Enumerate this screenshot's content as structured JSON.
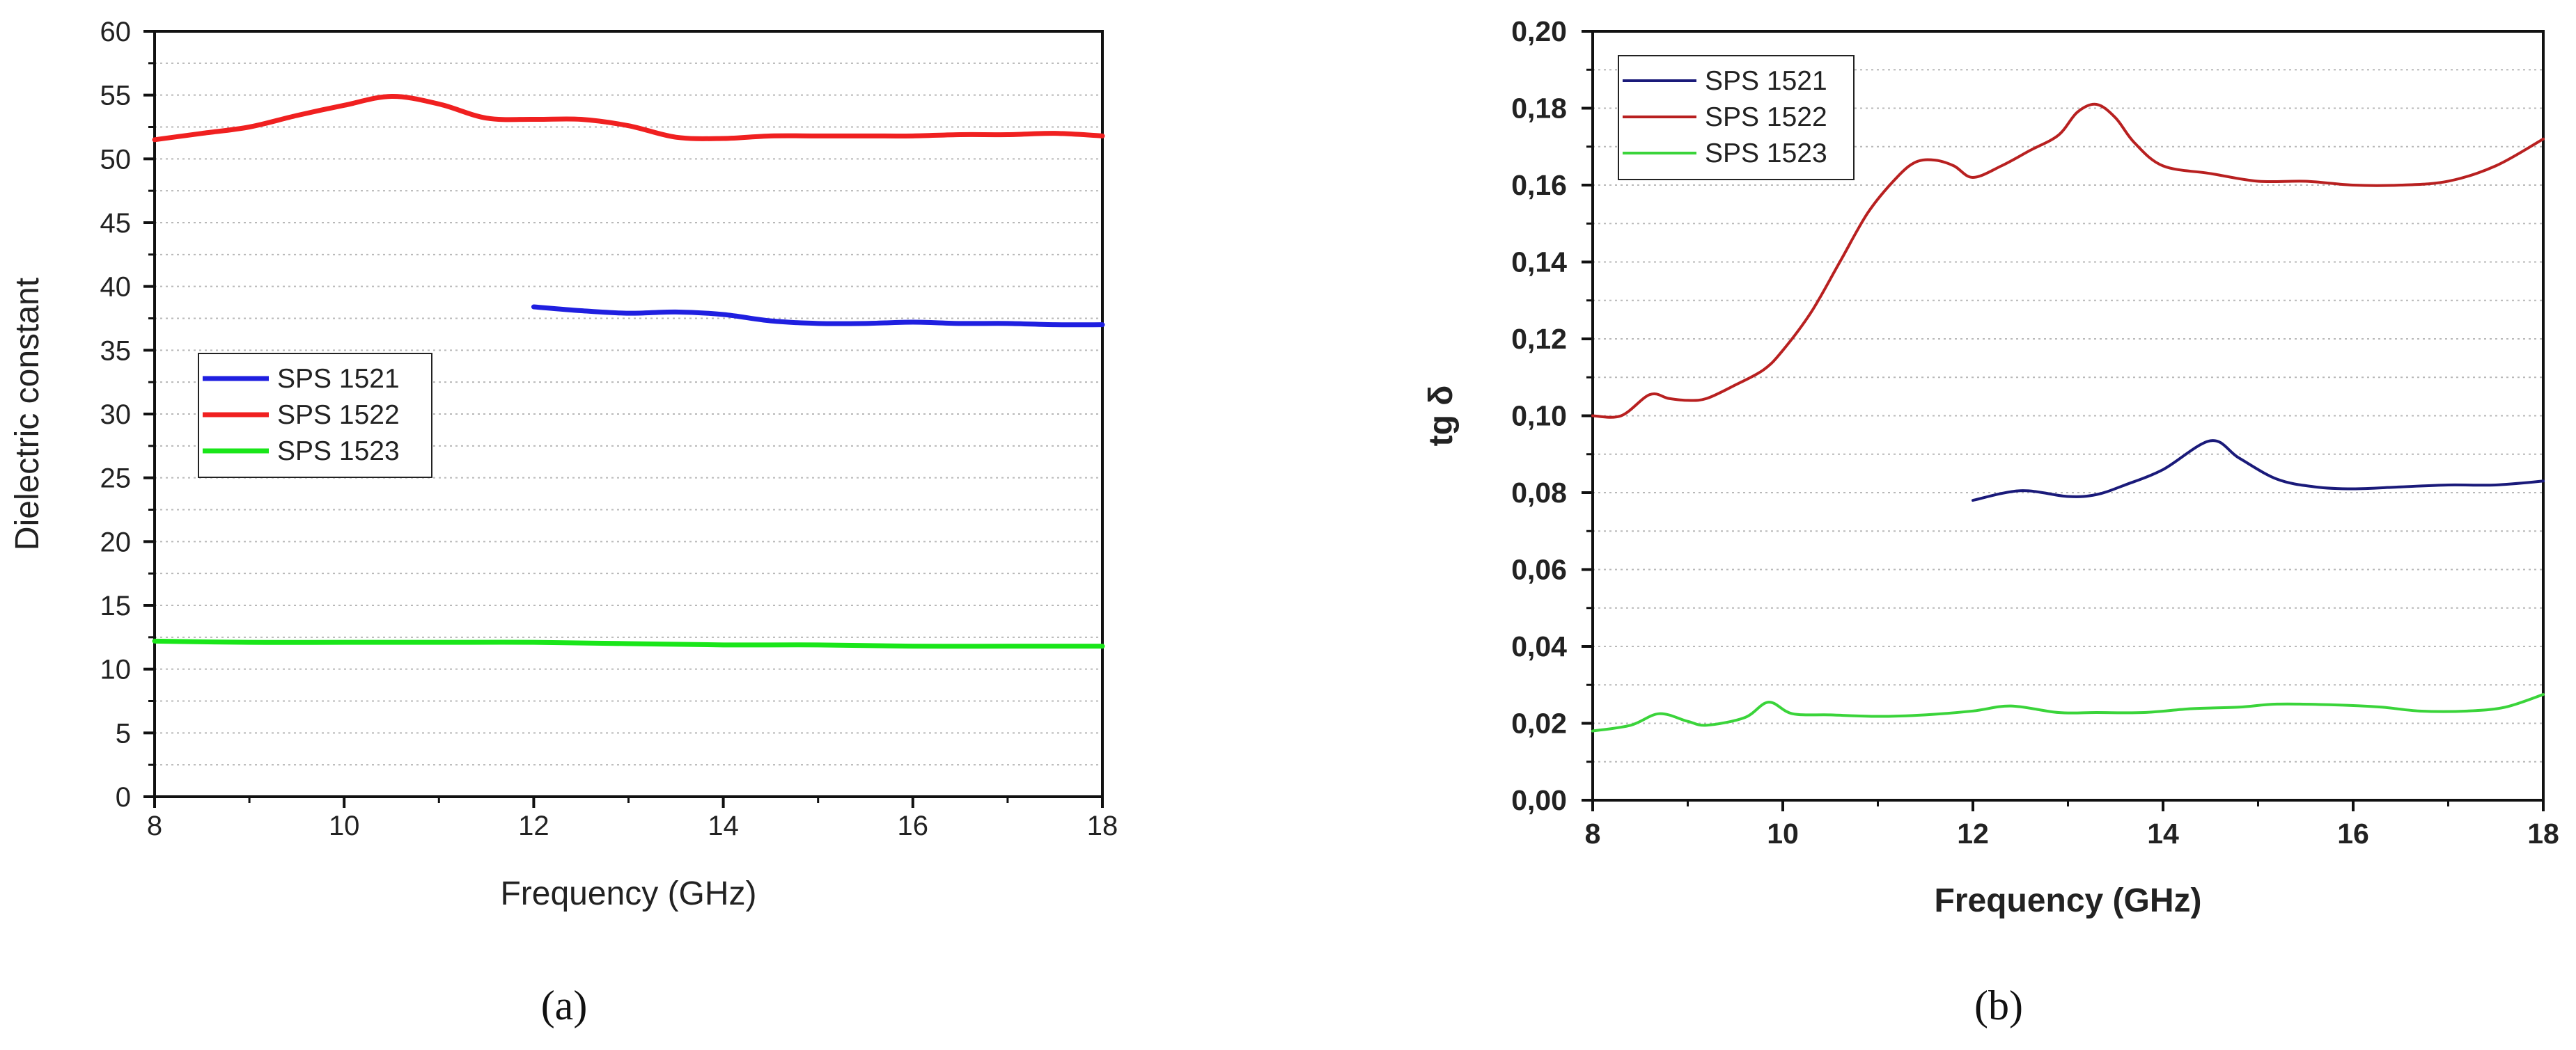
{
  "chart_data": [
    {
      "type": "line",
      "panel_label": "(a)",
      "xlabel": "Frequency (GHz)",
      "ylabel": "Dielectric constant",
      "xlim": [
        8,
        18
      ],
      "ylim": [
        0,
        60
      ],
      "x_ticks": [
        "8",
        "10",
        "12",
        "14",
        "16",
        "18"
      ],
      "y_ticks": [
        "0",
        "5",
        "10",
        "15",
        "20",
        "25",
        "30",
        "35",
        "40",
        "45",
        "50",
        "55",
        "60"
      ],
      "grid": "horizontal dotted",
      "legend_position": "middle-left",
      "series": [
        {
          "name": "SPS 1521",
          "color": "#1f1fe0",
          "x": [
            12,
            12.5,
            13,
            13.5,
            14,
            14.5,
            15,
            15.5,
            16,
            16.5,
            17,
            17.5,
            18
          ],
          "y": [
            38.4,
            38.1,
            37.9,
            38.0,
            37.8,
            37.3,
            37.1,
            37.1,
            37.2,
            37.1,
            37.1,
            37.0,
            37.0
          ]
        },
        {
          "name": "SPS 1522",
          "color": "#f02020",
          "x": [
            8,
            8.5,
            9,
            9.5,
            10,
            10.5,
            11,
            11.5,
            12,
            12.5,
            13,
            13.5,
            14,
            14.5,
            15,
            15.5,
            16,
            16.5,
            17,
            17.5,
            18
          ],
          "y": [
            51.5,
            52.0,
            52.5,
            53.4,
            54.2,
            54.9,
            54.3,
            53.2,
            53.1,
            53.1,
            52.6,
            51.7,
            51.6,
            51.8,
            51.8,
            51.8,
            51.8,
            51.9,
            51.9,
            52.0,
            51.8
          ]
        },
        {
          "name": "SPS 1523",
          "color": "#19e619",
          "x": [
            8,
            9,
            10,
            11,
            12,
            13,
            14,
            15,
            16,
            17,
            18
          ],
          "y": [
            12.2,
            12.1,
            12.1,
            12.1,
            12.1,
            12.0,
            11.9,
            11.9,
            11.8,
            11.8,
            11.8
          ]
        }
      ]
    },
    {
      "type": "line",
      "panel_label": "(b)",
      "xlabel": "Frequency (GHz)",
      "ylabel": "tg δ",
      "xlim": [
        8,
        18
      ],
      "ylim": [
        0,
        0.2
      ],
      "x_ticks": [
        "8",
        "10",
        "12",
        "14",
        "16",
        "18"
      ],
      "y_ticks": [
        "0,00",
        "0,02",
        "0,04",
        "0,06",
        "0,08",
        "0,10",
        "0,12",
        "0,14",
        "0,16",
        "0,18",
        "0,20"
      ],
      "grid": "horizontal dotted",
      "legend_position": "top-left",
      "series": [
        {
          "name": "SPS 1521",
          "color": "#1a1a7a",
          "x": [
            12,
            12.5,
            13,
            13.3,
            13.6,
            14,
            14.5,
            14.8,
            15.2,
            15.6,
            16,
            16.5,
            17,
            17.5,
            18
          ],
          "y": [
            0.078,
            0.0805,
            0.079,
            0.0795,
            0.082,
            0.086,
            0.0935,
            0.089,
            0.0835,
            0.0815,
            0.081,
            0.0815,
            0.082,
            0.082,
            0.083
          ]
        },
        {
          "name": "SPS 1522",
          "color": "#b82020",
          "x": [
            8,
            8.3,
            8.6,
            8.8,
            9,
            9.2,
            9.5,
            9.8,
            10,
            10.3,
            10.6,
            10.9,
            11.2,
            11.4,
            11.6,
            11.8,
            12,
            12.3,
            12.6,
            12.9,
            13.1,
            13.3,
            13.5,
            13.7,
            14,
            14.5,
            15,
            15.5,
            16,
            16.5,
            17,
            17.5,
            18
          ],
          "y": [
            0.1,
            0.1,
            0.1055,
            0.1045,
            0.104,
            0.1045,
            0.108,
            0.112,
            0.117,
            0.127,
            0.14,
            0.153,
            0.162,
            0.166,
            0.1665,
            0.165,
            0.162,
            0.165,
            0.169,
            0.173,
            0.179,
            0.181,
            0.1775,
            0.171,
            0.165,
            0.163,
            0.161,
            0.161,
            0.16,
            0.16,
            0.161,
            0.165,
            0.172
          ]
        },
        {
          "name": "SPS 1523",
          "color": "#3ad43a",
          "x": [
            8,
            8.4,
            8.7,
            9,
            9.2,
            9.6,
            9.85,
            10.1,
            10.5,
            11,
            11.5,
            12,
            12.4,
            12.9,
            13.3,
            13.8,
            14.3,
            14.8,
            15.2,
            15.8,
            16.3,
            16.7,
            17.2,
            17.6,
            18
          ],
          "y": [
            0.018,
            0.0195,
            0.0225,
            0.0205,
            0.0195,
            0.0215,
            0.0255,
            0.0225,
            0.0222,
            0.0218,
            0.0222,
            0.0232,
            0.0245,
            0.0228,
            0.0228,
            0.0228,
            0.0238,
            0.0242,
            0.025,
            0.0248,
            0.0242,
            0.0232,
            0.0232,
            0.0242,
            0.0275
          ]
        }
      ]
    }
  ]
}
